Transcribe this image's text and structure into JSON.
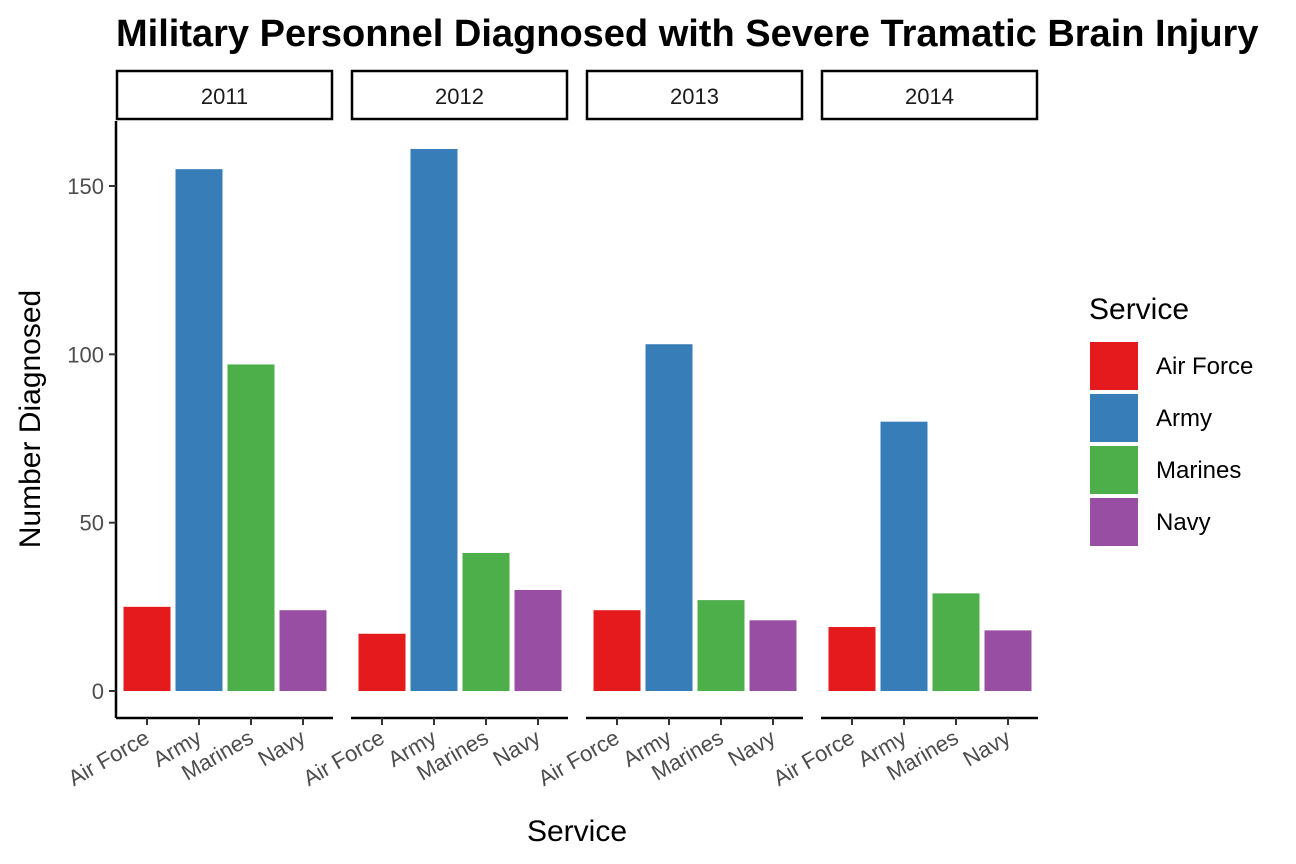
{
  "chart_data": {
    "type": "bar",
    "title": "Military Personnel Diagnosed with Severe Tramatic Brain Injury",
    "xlabel": "Service",
    "ylabel": "Number Diagnosed",
    "ylim": [
      0,
      170
    ],
    "yticks": [
      0,
      50,
      100,
      150
    ],
    "grid": false,
    "categories": [
      "Air Force",
      "Army",
      "Marines",
      "Navy"
    ],
    "colors": {
      "Air Force": "#E41A1C",
      "Army": "#377EB8",
      "Marines": "#4DAF4A",
      "Navy": "#984EA3"
    },
    "facets": [
      {
        "label": "2011",
        "values": [
          25,
          155,
          97,
          24
        ]
      },
      {
        "label": "2012",
        "values": [
          17,
          161,
          41,
          30
        ]
      },
      {
        "label": "2013",
        "values": [
          24,
          103,
          27,
          21
        ]
      },
      {
        "label": "2014",
        "values": [
          19,
          80,
          29,
          18
        ]
      }
    ],
    "legend": {
      "title": "Service",
      "position": "right",
      "entries": [
        "Air Force",
        "Army",
        "Marines",
        "Navy"
      ]
    }
  }
}
